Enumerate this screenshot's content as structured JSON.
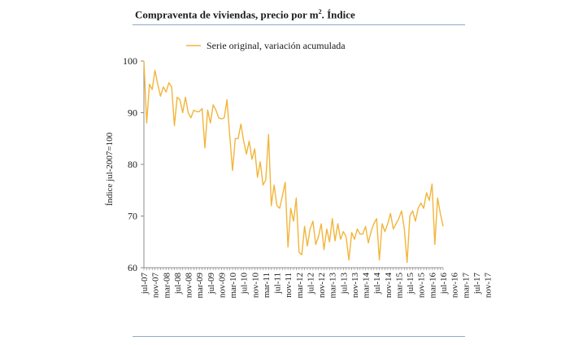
{
  "title": {
    "main": "Compraventa de viviendas, precio por m",
    "sup": "2",
    "tail": ". Índice"
  },
  "colors": {
    "series": "#f2b53a",
    "axis": "#8c8c8c",
    "rule": "#8eaacb",
    "text": "#1a1a1a"
  },
  "chart_data": {
    "type": "line",
    "title": "Compraventa de viviendas, precio por m2. Índice",
    "xlabel": "",
    "ylabel": "Índice jul-2007=100",
    "ylim": [
      60,
      100
    ],
    "yticks": [
      60,
      70,
      80,
      90,
      100
    ],
    "grid": false,
    "legend_position": "top",
    "x_tick_labels": [
      "jul-07",
      "nov-07",
      "mar-08",
      "jul-08",
      "nov-08",
      "mar-09",
      "jul-09",
      "nov-09",
      "mar-10",
      "jul-10",
      "nov-10",
      "mar-11",
      "jul-11",
      "nov-11",
      "mar-12",
      "jul-12",
      "nov-12",
      "mar-13",
      "jul-13",
      "nov-13",
      "mar-14",
      "jul-14",
      "nov-14",
      "mar-15",
      "jul-15",
      "nov-15",
      "mar-16",
      "jul-16",
      "nov-16",
      "mar-17",
      "jul-17",
      "nov-17"
    ],
    "series": [
      {
        "name": "Serie original, variación acumulada",
        "values": [
          100,
          88,
          95.5,
          94.5,
          98.2,
          95.5,
          93.2,
          95,
          94,
          95.8,
          95,
          87.5,
          93,
          92.5,
          90,
          93,
          90,
          89,
          90.5,
          90.2,
          90.2,
          90.8,
          83.2,
          90.5,
          88,
          91.5,
          90.5,
          89,
          88.8,
          89,
          92.5,
          85.5,
          78.8,
          85,
          85,
          87.8,
          84.5,
          82,
          84.5,
          81,
          83,
          77.5,
          80.5,
          76,
          77,
          85.8,
          72,
          76,
          72,
          71.5,
          74,
          76.5,
          64,
          71.5,
          69,
          73.5,
          63,
          62.5,
          68,
          64.2,
          67.5,
          69,
          64.5,
          66,
          68.5,
          63.5,
          67.5,
          65,
          69.5,
          65.2,
          68.5,
          65.5,
          67,
          66,
          61.5,
          66.8,
          65.5,
          67.5,
          66.5,
          66.5,
          68,
          64.8,
          67,
          68.5,
          69.5,
          61.5,
          68.5,
          67,
          68.5,
          70.5,
          67.5,
          68.5,
          69.5,
          71,
          67.5,
          61,
          70,
          71,
          69,
          71.5,
          72.5,
          71.5,
          74.5,
          73,
          76.2,
          64.5,
          73.5,
          70.5,
          68
        ]
      }
    ]
  }
}
